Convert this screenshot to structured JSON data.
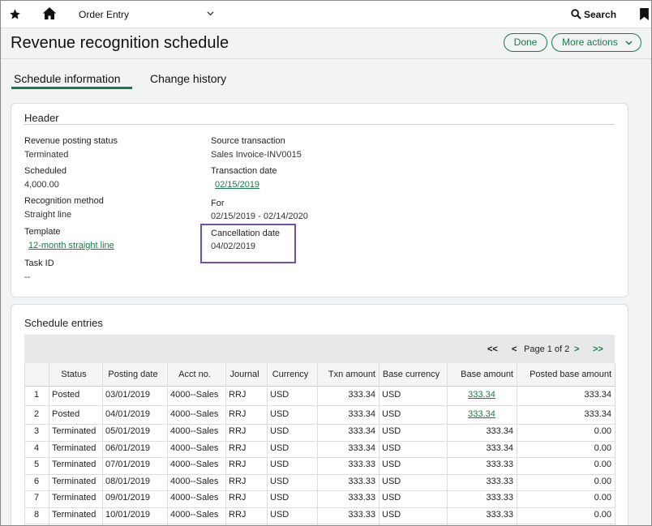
{
  "topbar": {
    "module": "Order Entry",
    "search": "Search"
  },
  "page": {
    "title": "Revenue recognition schedule",
    "buttons": [
      "Done",
      "More actions"
    ],
    "tabs": [
      "Schedule information",
      "Change history"
    ]
  },
  "header": {
    "title": "Header",
    "left": [
      {
        "label": "Revenue posting status",
        "value": "Terminated"
      },
      {
        "label": "Scheduled",
        "value": "4,000.00"
      },
      {
        "label": "Recognition method",
        "value": "Straight line"
      },
      {
        "label": "Template",
        "value": "12-month straight line",
        "link": true
      },
      {
        "label": "Task ID",
        "value": "--"
      }
    ],
    "right": [
      {
        "label": "Source transaction",
        "value": "Sales Invoice-INV0015"
      },
      {
        "label": "Transaction date",
        "value": "02/15/2019",
        "link": true
      },
      {
        "label": "For",
        "value": "02/15/2019 - 02/14/2020"
      },
      {
        "label": "Cancellation date",
        "value": "04/02/2019",
        "highlight": true
      }
    ]
  },
  "schedule": {
    "title": "Schedule entries",
    "pager": {
      "first": "<<",
      "prev": "<",
      "page": "Page 1 of 2",
      "next": ">",
      "last": ">>"
    },
    "columns": [
      "Status",
      "Posting date",
      "Acct no.",
      "Journal",
      "Currency",
      "Txn amount",
      "Base currency",
      "Base amount",
      "Posted base amount"
    ],
    "rows": [
      [
        "1",
        "Posted",
        "03/01/2019",
        "4000--Sales",
        "RRJ",
        "USD",
        "333.34",
        "USD",
        "333.34",
        "333.34"
      ],
      [
        "2",
        "Posted",
        "04/01/2019",
        "4000--Sales",
        "RRJ",
        "USD",
        "333.34",
        "USD",
        "333.34",
        "333.34"
      ],
      [
        "3",
        "Terminated",
        "05/01/2019",
        "4000--Sales",
        "RRJ",
        "USD",
        "333.34",
        "USD",
        "333.34",
        "0.00"
      ],
      [
        "4",
        "Terminated",
        "06/01/2019",
        "4000--Sales",
        "RRJ",
        "USD",
        "333.34",
        "USD",
        "333.34",
        "0.00"
      ],
      [
        "5",
        "Terminated",
        "07/01/2019",
        "4000--Sales",
        "RRJ",
        "USD",
        "333.33",
        "USD",
        "333.33",
        "0.00"
      ],
      [
        "6",
        "Terminated",
        "08/01/2019",
        "4000--Sales",
        "RRJ",
        "USD",
        "333.33",
        "USD",
        "333.33",
        "0.00"
      ],
      [
        "7",
        "Terminated",
        "09/01/2019",
        "4000--Sales",
        "RRJ",
        "USD",
        "333.33",
        "USD",
        "333.33",
        "0.00"
      ],
      [
        "8",
        "Terminated",
        "10/01/2019",
        "4000--Sales",
        "RRJ",
        "USD",
        "333.33",
        "USD",
        "333.33",
        "0.00"
      ]
    ]
  }
}
